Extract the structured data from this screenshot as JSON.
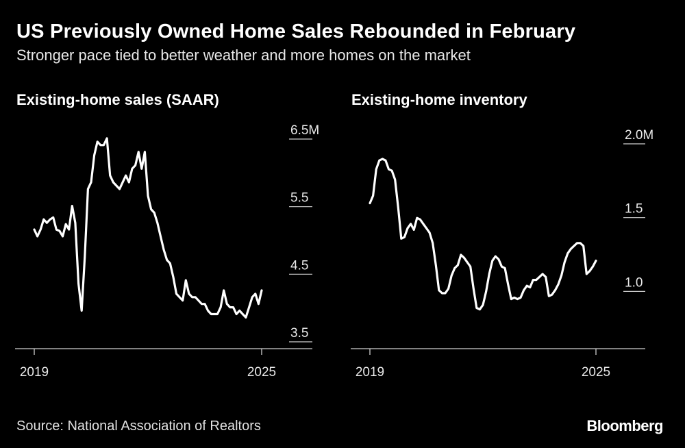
{
  "header": {
    "title": "US Previously Owned Home Sales Rebounded in February",
    "subtitle": "Stronger pace tied to better weather and more homes on the market"
  },
  "footer": {
    "source": "Source: National Association of Realtors",
    "brand": "Bloomberg"
  },
  "colors": {
    "background": "#000000",
    "line": "#ffffff",
    "text": "#e8e8e8"
  },
  "chart_data": [
    {
      "type": "line",
      "title": "Existing-home sales (SAAR)",
      "xlabel": "",
      "ylabel": "",
      "x_ticks": [
        "2019",
        "2025"
      ],
      "xlim": [
        2019.0,
        2025.17
      ],
      "ylim": [
        3.5,
        6.5
      ],
      "y_ticks": [
        {
          "value": 6.5,
          "label": "6.5M"
        },
        {
          "value": 5.5,
          "label": "5.5"
        },
        {
          "value": 4.5,
          "label": "4.5"
        },
        {
          "value": 3.5,
          "label": "3.5"
        }
      ],
      "grid": false,
      "series": [
        {
          "values": [
            5.1,
            5.0,
            5.1,
            5.25,
            5.2,
            5.25,
            5.28,
            5.1,
            5.08,
            5.0,
            5.18,
            5.1,
            5.45,
            5.2,
            4.3,
            3.9,
            4.7,
            5.7,
            5.8,
            6.2,
            6.4,
            6.35,
            6.35,
            6.45,
            5.9,
            5.8,
            5.75,
            5.7,
            5.8,
            5.9,
            5.8,
            6.0,
            6.05,
            6.25,
            6.0,
            6.25,
            5.6,
            5.4,
            5.35,
            5.2,
            5.0,
            4.8,
            4.65,
            4.6,
            4.4,
            4.15,
            4.1,
            4.05,
            4.35,
            4.15,
            4.1,
            4.1,
            4.05,
            4.0,
            4.0,
            3.9,
            3.85,
            3.85,
            3.85,
            3.95,
            4.2,
            4.0,
            3.95,
            3.95,
            3.85,
            3.9,
            3.85,
            3.8,
            3.95,
            4.1,
            4.15,
            4.0,
            4.2
          ]
        }
      ]
    },
    {
      "type": "line",
      "title": "Existing-home inventory",
      "xlabel": "",
      "ylabel": "",
      "x_ticks": [
        "2019",
        "2025"
      ],
      "xlim": [
        2019.0,
        2025.17
      ],
      "ylim": [
        0.7,
        2.0
      ],
      "y_ticks": [
        {
          "value": 2.0,
          "label": "2.0M"
        },
        {
          "value": 1.5,
          "label": "1.5"
        },
        {
          "value": 1.0,
          "label": "1.0"
        }
      ],
      "grid": false,
      "series": [
        {
          "values": [
            1.57,
            1.62,
            1.8,
            1.86,
            1.87,
            1.86,
            1.8,
            1.79,
            1.73,
            1.54,
            1.33,
            1.34,
            1.4,
            1.43,
            1.39,
            1.47,
            1.46,
            1.43,
            1.4,
            1.37,
            1.3,
            1.15,
            0.98,
            0.96,
            0.96,
            0.99,
            1.08,
            1.13,
            1.15,
            1.22,
            1.2,
            1.17,
            1.14,
            0.99,
            0.86,
            0.85,
            0.88,
            0.97,
            1.09,
            1.18,
            1.21,
            1.19,
            1.14,
            1.13,
            1.02,
            0.92,
            0.93,
            0.92,
            0.93,
            0.98,
            1.01,
            1.0,
            1.05,
            1.05,
            1.07,
            1.09,
            1.07,
            0.94,
            0.95,
            0.98,
            1.02,
            1.08,
            1.17,
            1.23,
            1.26,
            1.28,
            1.3,
            1.3,
            1.28,
            1.09,
            1.11,
            1.14,
            1.18
          ]
        }
      ]
    }
  ]
}
